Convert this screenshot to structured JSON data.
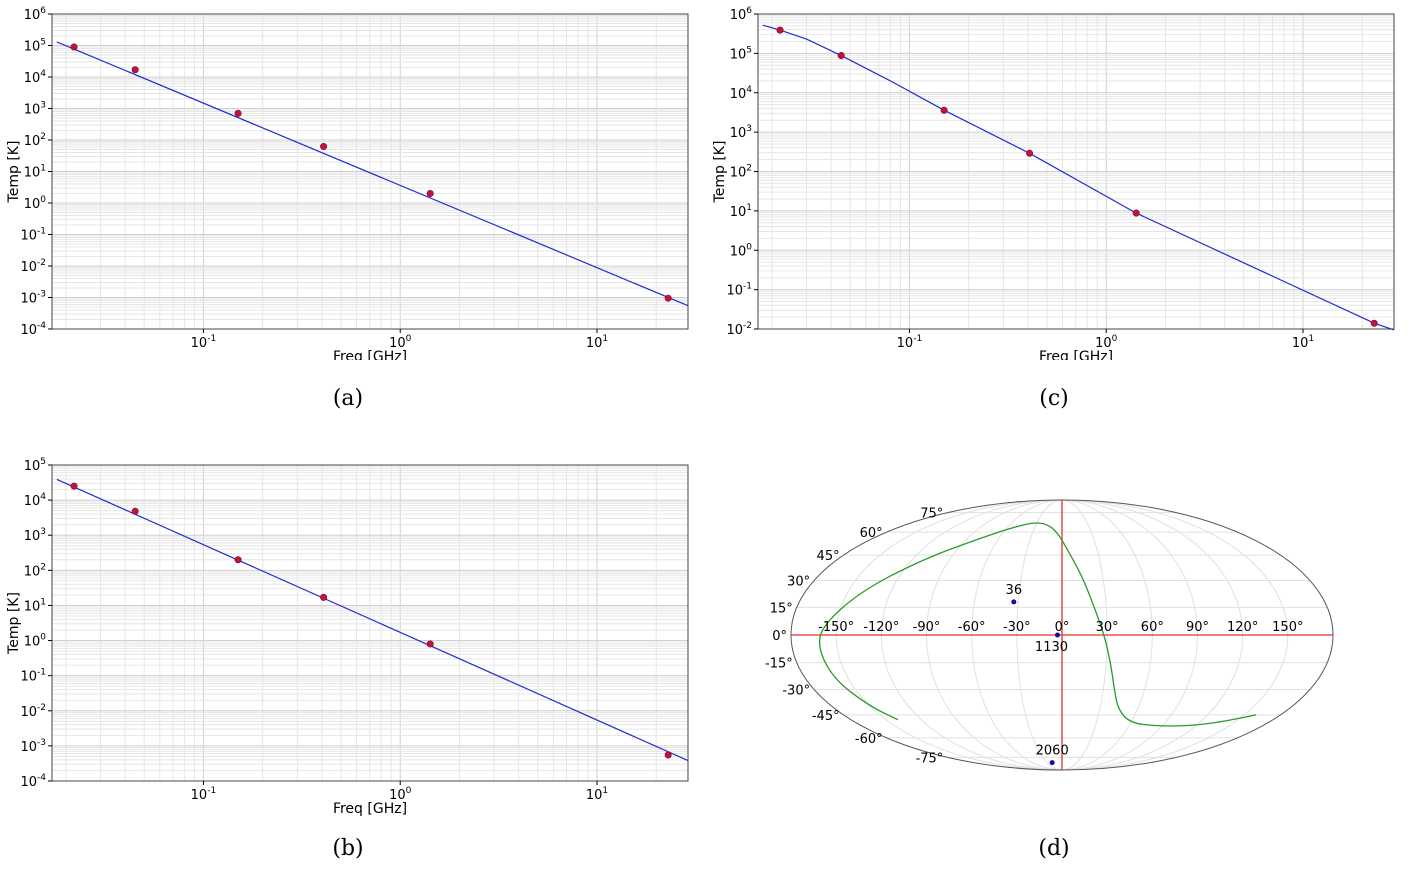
{
  "chart_data": [
    {
      "id": "a",
      "type": "line",
      "caption": "(a)",
      "xlabel": "Freq [GHz]",
      "ylabel": "Temp [K]",
      "xscale": "log",
      "yscale": "log",
      "xlim": [
        0.017,
        29
      ],
      "ylim_exp": [
        -4,
        6
      ],
      "grid": true,
      "points": {
        "x": [
          0.022,
          0.045,
          0.15,
          0.408,
          1.42,
          23
        ],
        "y": [
          90000,
          17000,
          700,
          62,
          2.0,
          0.00095
        ]
      },
      "fit": {
        "x": [
          0.018,
          29
        ],
        "y": [
          130000,
          0.00055
        ]
      },
      "colors": {
        "points": "#c0143c",
        "fit": "#1f2bd6"
      }
    },
    {
      "id": "b",
      "type": "line",
      "caption": "(b)",
      "xlabel": "Freq [GHz]",
      "ylabel": "Temp [K]",
      "xscale": "log",
      "yscale": "log",
      "xlim": [
        0.017,
        29
      ],
      "ylim_exp": [
        -4,
        5
      ],
      "grid": true,
      "points": {
        "x": [
          0.022,
          0.045,
          0.15,
          0.408,
          1.42,
          23
        ],
        "y": [
          25000,
          4800,
          200,
          17,
          0.8,
          0.00055
        ]
      },
      "fit": {
        "x": [
          0.018,
          29
        ],
        "y": [
          39000,
          0.00038
        ]
      },
      "colors": {
        "points": "#c0143c",
        "fit": "#1f2bd6"
      }
    },
    {
      "id": "c",
      "type": "line",
      "caption": "(c)",
      "xlabel": "Freq [GHz]",
      "ylabel": "Temp [K]",
      "xscale": "log",
      "yscale": "log",
      "xlim": [
        0.017,
        29
      ],
      "ylim_exp": [
        -2,
        6
      ],
      "grid": true,
      "points": {
        "x": [
          0.022,
          0.045,
          0.15,
          0.408,
          1.42,
          23
        ],
        "y": [
          390000,
          88000,
          3600,
          290,
          8.8,
          0.014
        ]
      },
      "fit": {
        "x": [
          0.018,
          0.022,
          0.03,
          0.045,
          0.08,
          0.15,
          0.408,
          1.42,
          23,
          29
        ],
        "y": [
          520000,
          390000,
          230000,
          88000,
          20000,
          3600,
          290,
          8.8,
          0.014,
          0.0095
        ]
      },
      "colors": {
        "points": "#c0143c",
        "fit": "#1f2bd6"
      }
    },
    {
      "id": "d",
      "type": "scatter",
      "caption": "(d)",
      "projection": "mollweide",
      "lon_labels": [
        "-150°",
        "-120°",
        "-90°",
        "-60°",
        "-30°",
        "0°",
        "30°",
        "60°",
        "90°",
        "120°",
        "150°"
      ],
      "lon_values": [
        -150,
        -120,
        -90,
        -60,
        -30,
        0,
        30,
        60,
        90,
        120,
        150
      ],
      "lat_labels": [
        "75°",
        "60°",
        "45°",
        "30°",
        "15°",
        "0°",
        "-15°",
        "-30°",
        "-45°",
        "-60°",
        "-75°"
      ],
      "lat_values": [
        75,
        60,
        45,
        30,
        15,
        0,
        -15,
        -30,
        -45,
        -60,
        -75
      ],
      "markers": [
        {
          "label": "36",
          "lon": -33,
          "lat": 18
        },
        {
          "label": "1130",
          "lon": -3,
          "lat": 0
        },
        {
          "label": "2060",
          "lon": -20,
          "lat": -80
        }
      ],
      "curve": {
        "lon": [
          -140,
          -150,
          -160,
          -163,
          -160,
          -140,
          -110,
          -80,
          -55,
          -35,
          -18,
          -5,
          5,
          15,
          22,
          28,
          33,
          38,
          45,
          60,
          85,
          110,
          135,
          160
        ],
        "lat": [
          -48,
          -40,
          -25,
          -8,
          5,
          25,
          43,
          55,
          63,
          67,
          66,
          60,
          48,
          32,
          15,
          0,
          -15,
          -30,
          -42,
          -50,
          -52,
          -52,
          -50,
          -45
        ]
      },
      "colors": {
        "markers": "#1010a0",
        "curve": "#2a9a2a",
        "axes": "#e03030",
        "frame": "#555555",
        "grid": "#e0e0e0"
      }
    }
  ]
}
